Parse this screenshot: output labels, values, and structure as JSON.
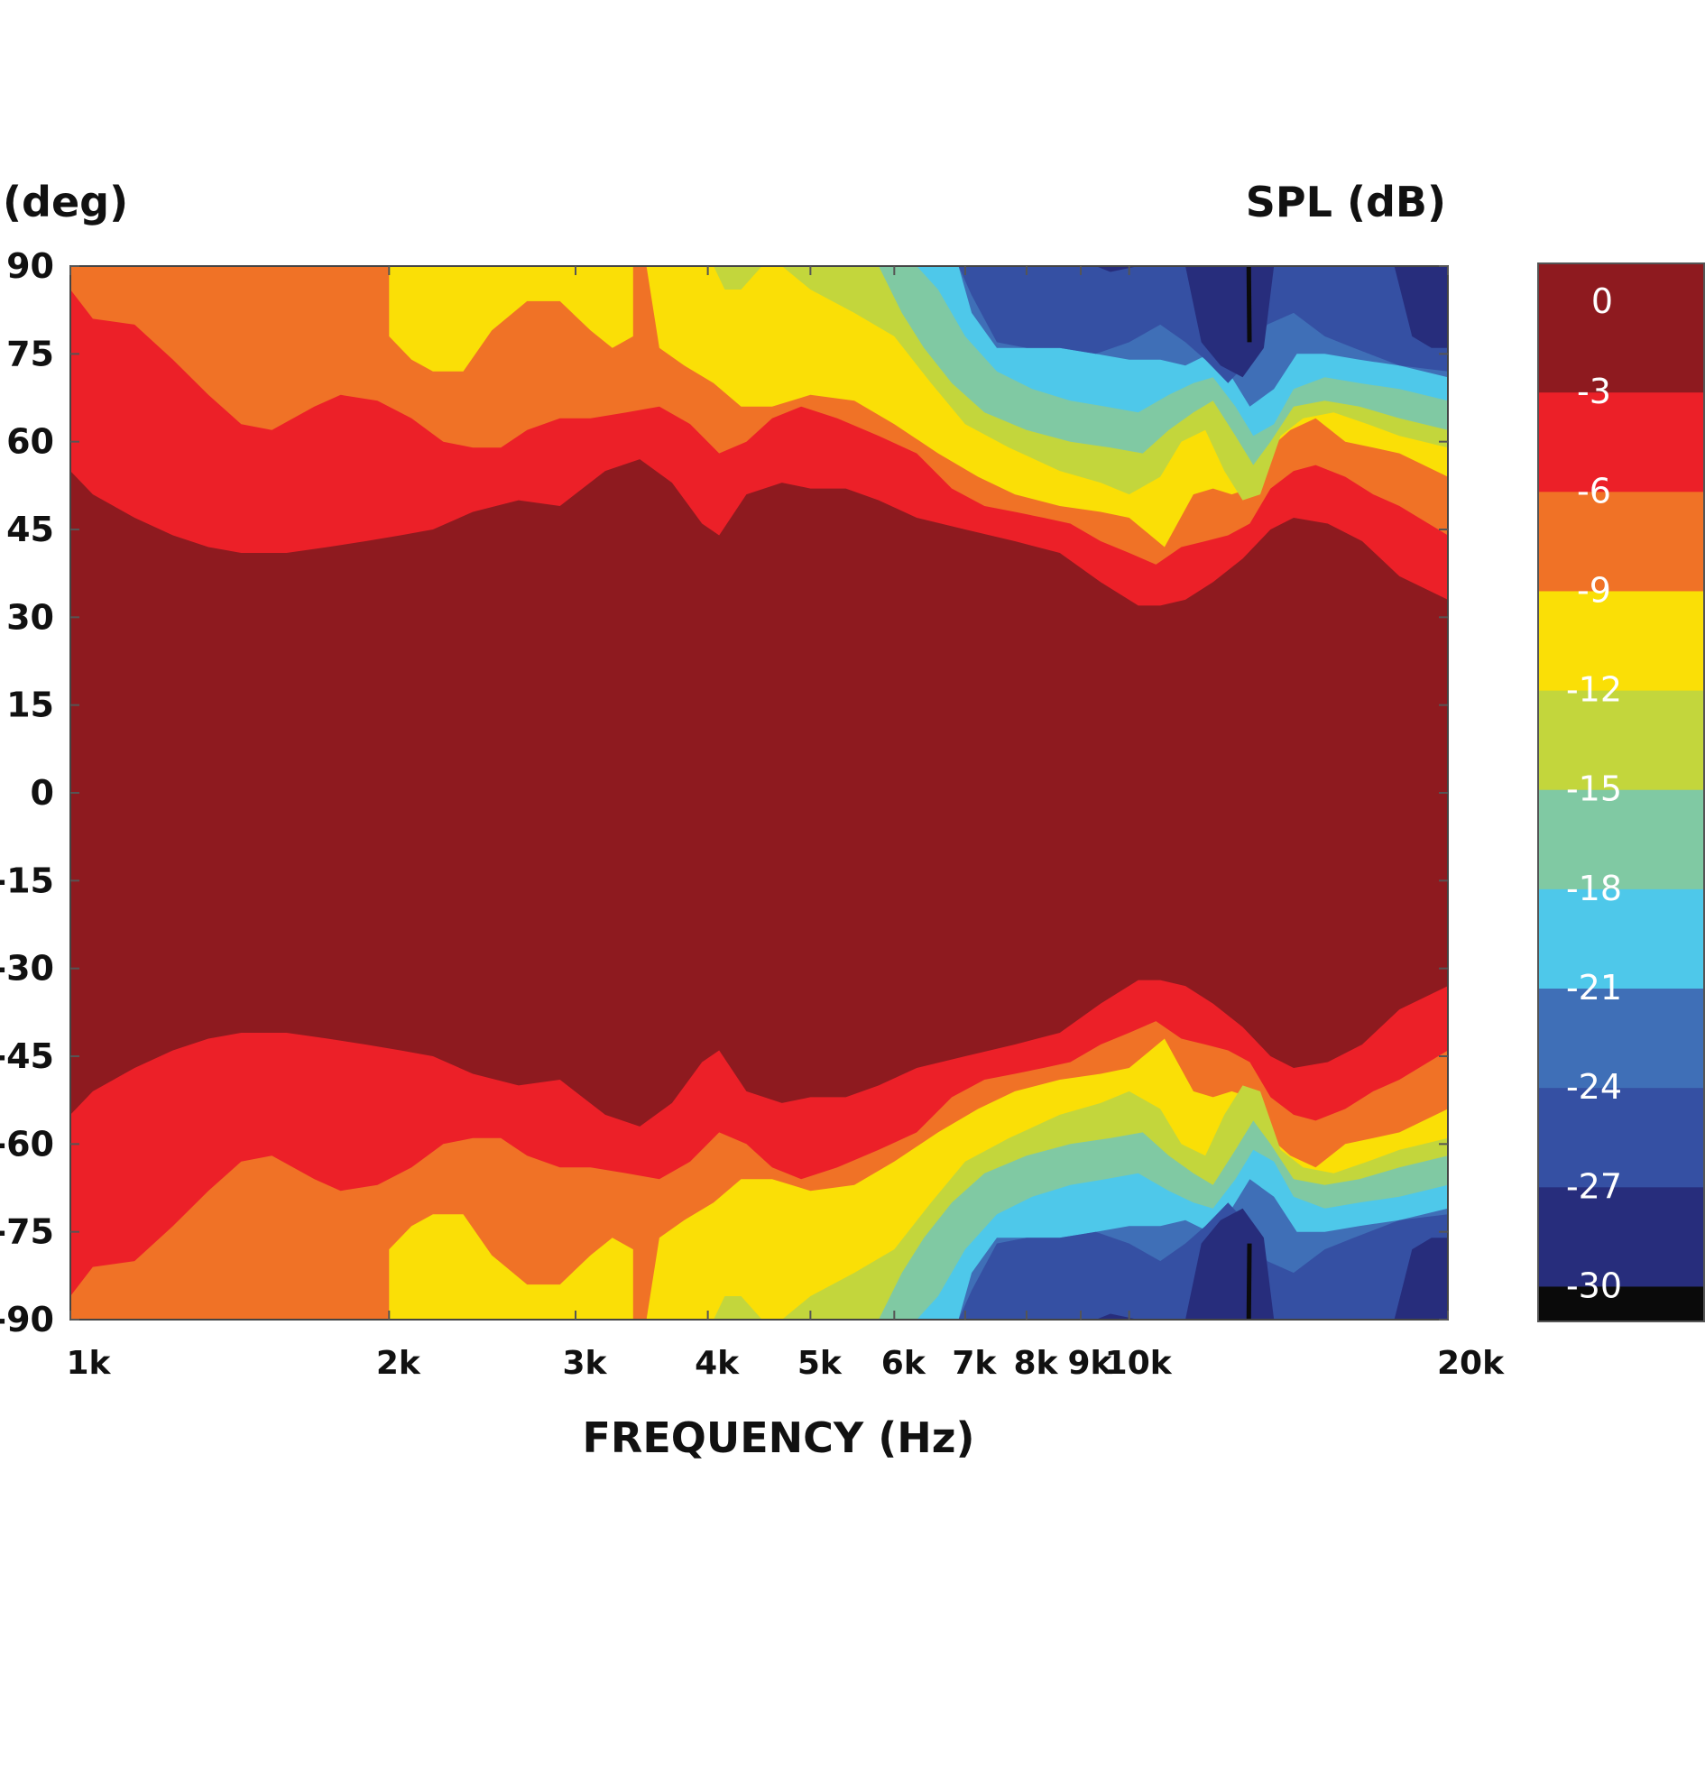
{
  "chart_data": {
    "type": "heatmap",
    "subtype": "filled-contour polar map",
    "xlabel": "FREQUENCY (Hz)",
    "ylabel": "(deg)",
    "colorbar_title": "SPL (dB)",
    "x_scale": "log",
    "xlim": [
      1000,
      20000
    ],
    "ylim": [
      -90,
      90
    ],
    "x_ticks": [
      1000,
      2000,
      3000,
      4000,
      5000,
      6000,
      7000,
      8000,
      9000,
      10000,
      20000
    ],
    "x_tick_labels": [
      "1k",
      "2k",
      "3k",
      "4k",
      "5k",
      "6k",
      "7k",
      "8k",
      "9k",
      "10k",
      "20k"
    ],
    "y_ticks": [
      90,
      75,
      60,
      45,
      30,
      15,
      0,
      -15,
      -30,
      -45,
      -60,
      -75,
      -90
    ],
    "y_tick_labels": [
      "90",
      "75",
      "60",
      "45",
      "30",
      "15",
      "0",
      "-15",
      "-30",
      "-45",
      "-60",
      "-75",
      "-90"
    ],
    "colorbar_levels": [
      0,
      -3,
      -6,
      -9,
      -12,
      -15,
      -18,
      -21,
      -24,
      -27,
      -30
    ],
    "colorbar_labels": [
      "0",
      "-3",
      "-6",
      "-9",
      "-12",
      "-15",
      "-18",
      "-21",
      "-24",
      "-27",
      "-30"
    ],
    "level_colors": [
      "#8e1a1f",
      "#ec2028",
      "#f07226",
      "#fadf06",
      "#c3d63c",
      "#80c9a3",
      "#4ec8ea",
      "#3f6fb7",
      "#3550a3",
      "#272d7c",
      "#0a0a0a"
    ],
    "symmetric_about": 0,
    "contour_bands": [
      {
        "level": "-3",
        "points": [
          [
            1000,
            55
          ],
          [
            1050,
            51
          ],
          [
            1150,
            47
          ],
          [
            1250,
            44
          ],
          [
            1350,
            42
          ],
          [
            1450,
            41
          ],
          [
            1600,
            41
          ],
          [
            1750,
            42
          ],
          [
            1900,
            43
          ],
          [
            2050,
            44
          ],
          [
            2200,
            45
          ],
          [
            2400,
            48
          ],
          [
            2650,
            50
          ],
          [
            2900,
            49
          ],
          [
            3200,
            55
          ],
          [
            3450,
            57
          ],
          [
            3700,
            53
          ],
          [
            3950,
            46
          ],
          [
            4100,
            44
          ],
          [
            4350,
            51
          ],
          [
            4700,
            53
          ],
          [
            5000,
            52
          ],
          [
            5400,
            52
          ],
          [
            5800,
            50
          ],
          [
            6300,
            47
          ],
          [
            7000,
            45
          ],
          [
            7800,
            43
          ],
          [
            8600,
            41
          ],
          [
            9400,
            36
          ],
          [
            10200,
            32
          ],
          [
            10700,
            32
          ],
          [
            11300,
            33
          ],
          [
            12000,
            36
          ],
          [
            12800,
            40
          ],
          [
            13600,
            45
          ],
          [
            14300,
            47
          ],
          [
            15400,
            46
          ],
          [
            16600,
            43
          ],
          [
            18000,
            37
          ],
          [
            20000,
            33
          ]
        ]
      },
      {
        "level": "-6",
        "points": [
          [
            1000,
            86
          ],
          [
            1050,
            81
          ],
          [
            1150,
            80
          ],
          [
            1250,
            74
          ],
          [
            1350,
            68
          ],
          [
            1450,
            63
          ],
          [
            1550,
            62
          ],
          [
            1700,
            66
          ],
          [
            1800,
            68
          ],
          [
            1950,
            67
          ],
          [
            2100,
            64
          ],
          [
            2250,
            60
          ],
          [
            2400,
            59
          ],
          [
            2550,
            59
          ],
          [
            2700,
            62
          ],
          [
            2900,
            64
          ],
          [
            3100,
            64
          ],
          [
            3350,
            65
          ],
          [
            3600,
            66
          ],
          [
            3850,
            63
          ],
          [
            4100,
            58
          ],
          [
            4350,
            60
          ],
          [
            4600,
            64
          ],
          [
            4900,
            66
          ],
          [
            5300,
            64
          ],
          [
            5800,
            61
          ],
          [
            6300,
            58
          ],
          [
            6800,
            52
          ],
          [
            7300,
            49
          ],
          [
            7800,
            48
          ],
          [
            8300,
            47
          ],
          [
            8800,
            46
          ],
          [
            9400,
            43
          ],
          [
            10000,
            41
          ],
          [
            10600,
            39
          ],
          [
            11200,
            42
          ],
          [
            11800,
            43
          ],
          [
            12400,
            44
          ],
          [
            13000,
            46
          ],
          [
            13600,
            52
          ],
          [
            14300,
            55
          ],
          [
            15000,
            56
          ],
          [
            16000,
            54
          ],
          [
            17000,
            51
          ],
          [
            18000,
            49
          ],
          [
            20000,
            44
          ]
        ]
      },
      {
        "level": "-9",
        "points": [
          [
            1000,
            90
          ],
          [
            2000,
            90
          ],
          [
            2000,
            78
          ],
          [
            2100,
            74
          ],
          [
            2200,
            72
          ],
          [
            2350,
            72
          ],
          [
            2500,
            79
          ],
          [
            2700,
            84
          ],
          [
            2900,
            84
          ],
          [
            3100,
            79
          ],
          [
            3250,
            76
          ],
          [
            3400,
            78
          ],
          [
            3400,
            90
          ],
          [
            3500,
            90
          ],
          [
            3600,
            76
          ],
          [
            3800,
            73
          ],
          [
            4050,
            70
          ],
          [
            4300,
            66
          ],
          [
            4600,
            66
          ],
          [
            5000,
            68
          ],
          [
            5500,
            67
          ],
          [
            6000,
            63
          ],
          [
            6600,
            58
          ],
          [
            7200,
            54
          ],
          [
            7800,
            51
          ],
          [
            8600,
            49
          ],
          [
            9400,
            48
          ],
          [
            10000,
            47
          ],
          [
            10800,
            42
          ],
          [
            11500,
            51
          ],
          [
            12000,
            52
          ],
          [
            12500,
            51
          ],
          [
            13000,
            52
          ],
          [
            13600,
            59
          ],
          [
            14200,
            62
          ],
          [
            15000,
            64
          ],
          [
            16000,
            60
          ],
          [
            17000,
            59
          ],
          [
            18000,
            58
          ],
          [
            20000,
            54
          ]
        ]
      },
      {
        "level": "-12",
        "points": [
          [
            1000,
            90
          ],
          [
            4050,
            90
          ],
          [
            4150,
            86
          ],
          [
            4300,
            86
          ],
          [
            4500,
            90
          ],
          [
            4700,
            90
          ],
          [
            5000,
            86
          ],
          [
            5500,
            82
          ],
          [
            6000,
            78
          ],
          [
            6500,
            70
          ],
          [
            7000,
            63
          ],
          [
            7700,
            59
          ],
          [
            8600,
            55
          ],
          [
            9400,
            53
          ],
          [
            10000,
            51
          ],
          [
            10700,
            54
          ],
          [
            11200,
            60
          ],
          [
            11800,
            62
          ],
          [
            12300,
            55
          ],
          [
            12800,
            50
          ],
          [
            13300,
            51
          ],
          [
            13900,
            61
          ],
          [
            14600,
            64
          ],
          [
            15600,
            65
          ],
          [
            16800,
            63
          ],
          [
            18000,
            61
          ],
          [
            20000,
            59
          ]
        ]
      },
      {
        "level": "-15",
        "points": [
          [
            1000,
            90
          ],
          [
            5800,
            90
          ],
          [
            6100,
            82
          ],
          [
            6400,
            76
          ],
          [
            6800,
            70
          ],
          [
            7300,
            65
          ],
          [
            8000,
            62
          ],
          [
            8800,
            60
          ],
          [
            9600,
            59
          ],
          [
            10300,
            58
          ],
          [
            10900,
            62
          ],
          [
            11500,
            65
          ],
          [
            12000,
            67
          ],
          [
            12600,
            61
          ],
          [
            13100,
            56
          ],
          [
            13600,
            60
          ],
          [
            14300,
            66
          ],
          [
            15300,
            67
          ],
          [
            16500,
            66
          ],
          [
            18000,
            64
          ],
          [
            20000,
            62
          ]
        ]
      },
      {
        "level": "-18",
        "points": [
          [
            1000,
            90
          ],
          [
            6300,
            90
          ],
          [
            6600,
            86
          ],
          [
            7000,
            78
          ],
          [
            7500,
            72
          ],
          [
            8100,
            69
          ],
          [
            8800,
            67
          ],
          [
            9500,
            66
          ],
          [
            10200,
            65
          ],
          [
            10900,
            68
          ],
          [
            11500,
            70
          ],
          [
            12000,
            71
          ],
          [
            12600,
            66
          ],
          [
            13100,
            61
          ],
          [
            13700,
            63
          ],
          [
            14300,
            69
          ],
          [
            15300,
            71
          ],
          [
            16500,
            70
          ],
          [
            18000,
            69
          ],
          [
            20000,
            67
          ]
        ]
      },
      {
        "level": "-21",
        "points": [
          [
            1000,
            90
          ],
          [
            6900,
            90
          ],
          [
            7100,
            82
          ],
          [
            7500,
            76
          ],
          [
            8000,
            76
          ],
          [
            8600,
            76
          ],
          [
            9300,
            75
          ],
          [
            10000,
            74
          ],
          [
            10700,
            74
          ],
          [
            11300,
            73
          ],
          [
            11900,
            75
          ],
          [
            12500,
            71
          ],
          [
            13000,
            66
          ],
          [
            13700,
            69
          ],
          [
            14400,
            75
          ],
          [
            15300,
            75
          ],
          [
            16500,
            74
          ],
          [
            18000,
            73
          ],
          [
            20000,
            71
          ]
        ]
      },
      {
        "level": "-24",
        "points": [
          [
            1000,
            90
          ],
          [
            6900,
            90
          ],
          [
            7100,
            85
          ],
          [
            7500,
            77
          ],
          [
            8000,
            76
          ],
          [
            8600,
            76
          ],
          [
            9300,
            75
          ],
          [
            10000,
            77
          ],
          [
            10700,
            80
          ],
          [
            11300,
            77
          ],
          [
            11800,
            74
          ],
          [
            12400,
            70
          ],
          [
            13000,
            74
          ],
          [
            13500,
            80
          ],
          [
            14300,
            82
          ],
          [
            15300,
            78
          ],
          [
            16300,
            76
          ],
          [
            18000,
            73
          ],
          [
            20000,
            72
          ]
        ]
      },
      {
        "level": "-27",
        "points": [
          [
            1000,
            90
          ],
          [
            9300,
            90
          ],
          [
            9600,
            89
          ],
          [
            10200,
            90
          ],
          [
            11300,
            90
          ],
          [
            11700,
            77
          ],
          [
            12200,
            73
          ],
          [
            12800,
            71
          ],
          [
            13400,
            76
          ],
          [
            13700,
            90
          ],
          [
            17800,
            90
          ],
          [
            18500,
            78
          ],
          [
            19300,
            76
          ],
          [
            20000,
            76
          ]
        ]
      },
      {
        "level": "-30",
        "points": [
          [
            12900,
            90
          ],
          [
            12950,
            77
          ],
          [
            13000,
            77
          ],
          [
            13050,
            90
          ]
        ]
      }
    ]
  }
}
